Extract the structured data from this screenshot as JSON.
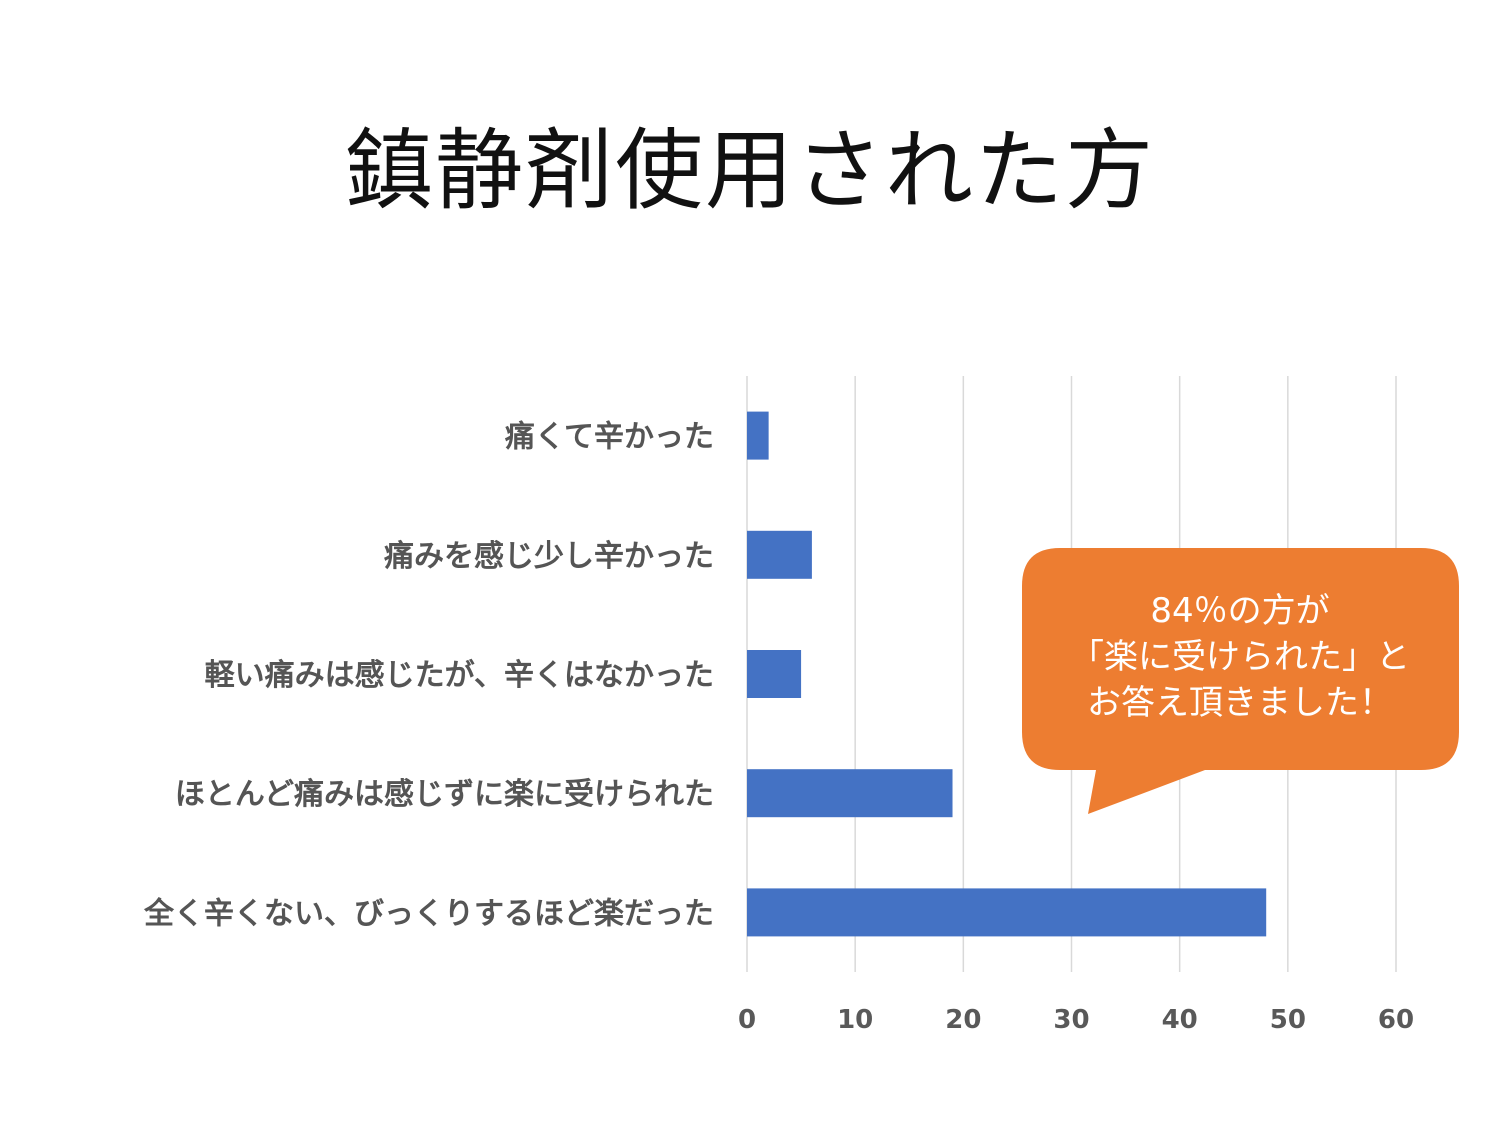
{
  "slide": {
    "title": "鎮静剤使用された方"
  },
  "chart_data": {
    "type": "bar",
    "orientation": "horizontal",
    "categories": [
      "痛くて辛かった",
      "痛みを感じ少し辛かった",
      "軽い痛みは感じたが、辛くはなかった",
      "ほとんど痛みは感じずに楽に受けられた",
      "全く辛くない、びっくりするほど楽だった"
    ],
    "values": [
      2,
      6,
      5,
      19,
      48
    ],
    "xlim": [
      0,
      60
    ],
    "xticks": [
      0,
      10,
      20,
      30,
      40,
      50,
      60
    ],
    "grid": "vertical",
    "bar_color": "#4472C4"
  },
  "callout": {
    "lines": [
      "84％の方が",
      "「楽に受けられた」と",
      "お答え頂きました！"
    ],
    "color": "#ED7D31"
  }
}
